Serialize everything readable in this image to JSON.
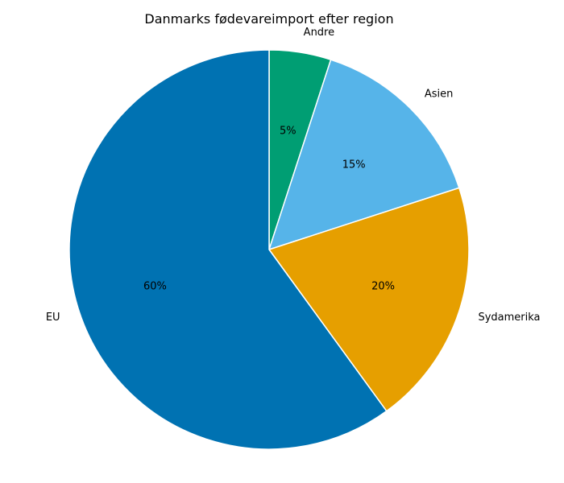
{
  "chart_data": {
    "type": "pie",
    "title": "Danmarks fødevareimport efter region",
    "slices": [
      {
        "label": "Andre",
        "value": 5,
        "pct_label": "5%",
        "color": "#009E73"
      },
      {
        "label": "Asien",
        "value": 15,
        "pct_label": "15%",
        "color": "#56B4E9"
      },
      {
        "label": "Sydamerika",
        "value": 20,
        "pct_label": "20%",
        "color": "#E69F00"
      },
      {
        "label": "EU",
        "value": 60,
        "pct_label": "60%",
        "color": "#0072B2"
      }
    ],
    "start_angle": "12 o'clock",
    "direction": "clockwise",
    "edge_color": "#ffffff"
  }
}
